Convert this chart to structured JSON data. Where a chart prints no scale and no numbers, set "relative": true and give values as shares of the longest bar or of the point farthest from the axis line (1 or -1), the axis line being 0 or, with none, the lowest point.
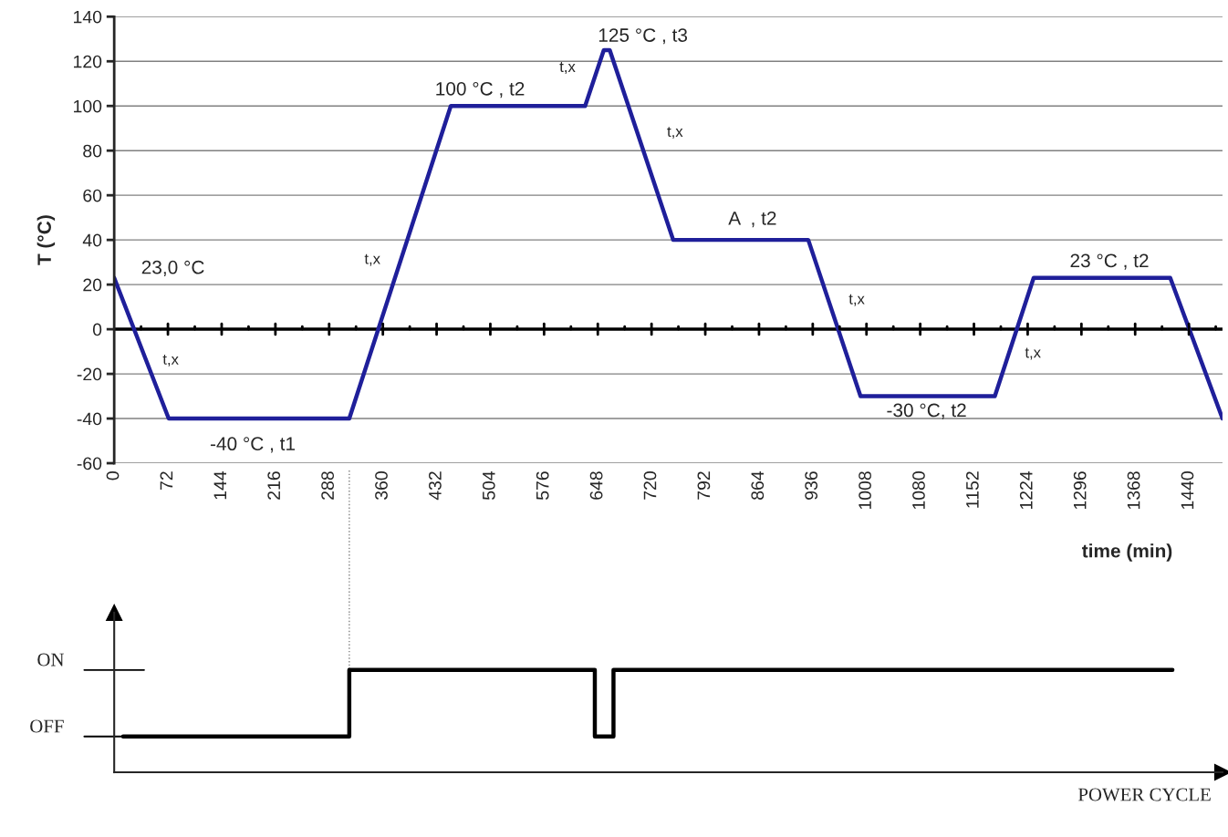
{
  "chart_data": [
    {
      "type": "line",
      "xlabel": "time (min)",
      "ylabel": "T (°C)",
      "x": [
        0,
        73,
        315,
        451,
        631,
        656,
        664,
        749,
        930,
        1000,
        1180,
        1232,
        1415,
        1485
      ],
      "series": [
        {
          "color": "#1f1f9a",
          "values": [
            23,
            -40,
            -40,
            100,
            100,
            125,
            125,
            40,
            40,
            -30,
            -30,
            23,
            23,
            -40
          ]
        }
      ],
      "xlim": [
        0,
        1485
      ],
      "xticks": [
        0,
        72,
        144,
        216,
        288,
        360,
        432,
        504,
        576,
        648,
        720,
        792,
        864,
        936,
        1008,
        1080,
        1152,
        1224,
        1296,
        1368,
        1440
      ],
      "ylim": [
        -60,
        140
      ],
      "yticks": [
        -60,
        -40,
        -20,
        0,
        20,
        40,
        60,
        80,
        100,
        120,
        140
      ],
      "grid": "y",
      "marker": "none",
      "line_style": "solid",
      "ref_lines": [
        {
          "axis": "y",
          "value": 0,
          "color": "#000000"
        }
      ],
      "annotations": [
        "23,0 °C",
        "t,x",
        "-40 °C , t1",
        "t,x",
        "100 °C , t2",
        "t,x",
        "125 °C , t3",
        "t,x",
        "A  , t2",
        "t,x",
        "-30 °C, t2",
        "t,x",
        "23 °C , t2"
      ]
    },
    {
      "type": "step",
      "xlabel": "POWER CYCLE",
      "x": [
        12,
        315,
        644,
        669,
        1418
      ],
      "series": [
        {
          "color": "#000000",
          "values": [
            0.35,
            1,
            0.35,
            1,
            1
          ]
        }
      ],
      "relative": true,
      "xlim": [
        0,
        1485
      ],
      "annotations": [
        "ON",
        "OFF"
      ],
      "grid": false,
      "ref_lines": [
        {
          "axis": "x",
          "value": 315,
          "color": "#808080",
          "line_style": "dotted"
        }
      ]
    }
  ]
}
